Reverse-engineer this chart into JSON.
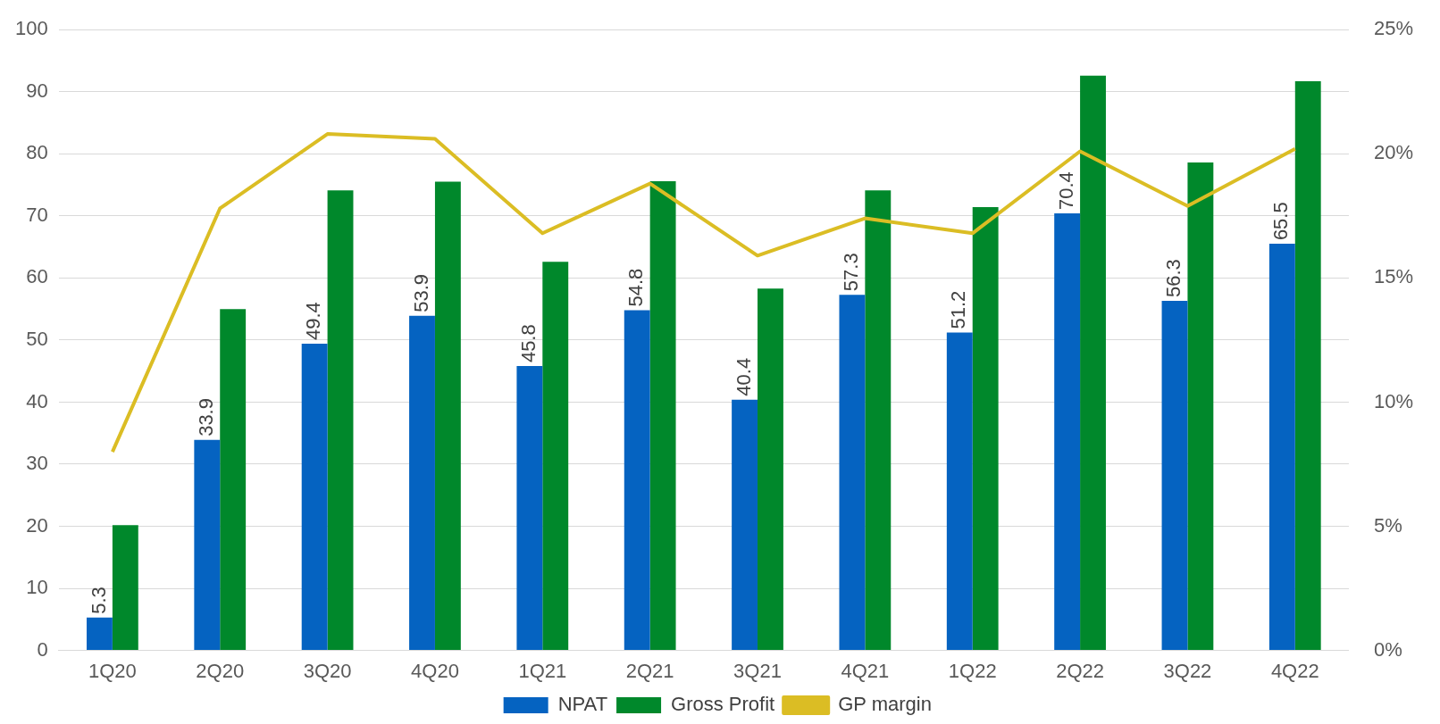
{
  "chart_data": {
    "type": "bar",
    "categories": [
      "1Q20",
      "2Q20",
      "3Q20",
      "4Q20",
      "1Q21",
      "2Q21",
      "3Q21",
      "4Q21",
      "1Q22",
      "2Q22",
      "3Q22",
      "4Q22"
    ],
    "series": [
      {
        "name": "NPAT",
        "color": "#0563c1",
        "values": [
          5.3,
          33.9,
          49.4,
          53.9,
          45.8,
          54.8,
          40.4,
          57.3,
          51.2,
          70.4,
          56.3,
          65.5
        ],
        "value_labels": [
          "5.3",
          "33.9",
          "49.4",
          "53.9",
          "45.8",
          "54.8",
          "40.4",
          "57.3",
          "51.2",
          "70.4",
          "56.3",
          "65.5"
        ]
      },
      {
        "name": "Gross Profit",
        "color": "#00882b",
        "values": [
          20.2,
          55.0,
          74.1,
          75.5,
          62.6,
          75.6,
          58.3,
          74.1,
          71.4,
          92.6,
          78.6,
          91.7
        ]
      },
      {
        "name": "GP margin",
        "type": "line",
        "axis": "y2",
        "color": "#dbbd24",
        "values": [
          8.0,
          17.8,
          20.8,
          20.6,
          16.8,
          18.8,
          15.9,
          17.4,
          16.8,
          20.1,
          17.9,
          20.2
        ]
      }
    ],
    "ylim": [
      0,
      100
    ],
    "yticks": [
      0,
      10,
      20,
      30,
      40,
      50,
      60,
      70,
      80,
      90,
      100
    ],
    "y2lim": [
      0,
      25
    ],
    "y2ticks": [
      {
        "value": 0,
        "label": "0%"
      },
      {
        "value": 5,
        "label": "5%"
      },
      {
        "value": 10,
        "label": "10%"
      },
      {
        "value": 15,
        "label": "15%"
      },
      {
        "value": 20,
        "label": "20%"
      },
      {
        "value": 25,
        "label": "25%"
      }
    ],
    "grid": "y",
    "legend": "bottom",
    "marker": "none",
    "line_style": "solid"
  }
}
